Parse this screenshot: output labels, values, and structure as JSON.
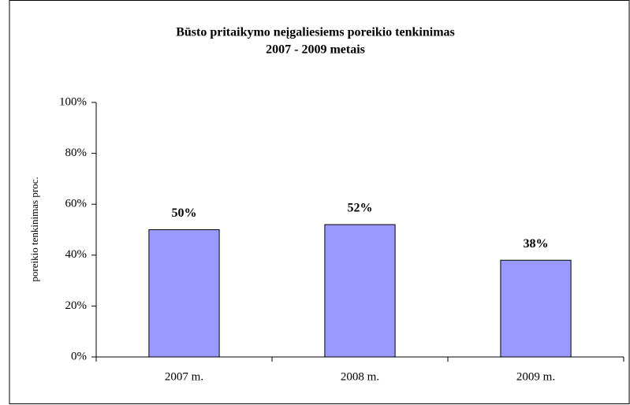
{
  "chart_data": {
    "type": "bar",
    "title": [
      "Būsto pritaikymo neįgaliesiems poreikio tenkinimas",
      "2007 - 2009 metais"
    ],
    "y_label": "poreikio tenkinimas proc.",
    "categories": [
      "2007 m.",
      "2008 m.",
      "2009 m."
    ],
    "values": [
      50,
      52,
      38
    ],
    "value_labels": [
      "50%",
      "52%",
      "38%"
    ],
    "color": "#9999ff",
    "ylim": [
      0,
      100
    ],
    "yticks": [
      {
        "value": 0,
        "label": "0%"
      },
      {
        "value": 20,
        "label": "20%"
      },
      {
        "value": 40,
        "label": "40%"
      },
      {
        "value": 60,
        "label": "60%"
      },
      {
        "value": 80,
        "label": "80%"
      },
      {
        "value": 100,
        "label": "100%"
      }
    ]
  }
}
